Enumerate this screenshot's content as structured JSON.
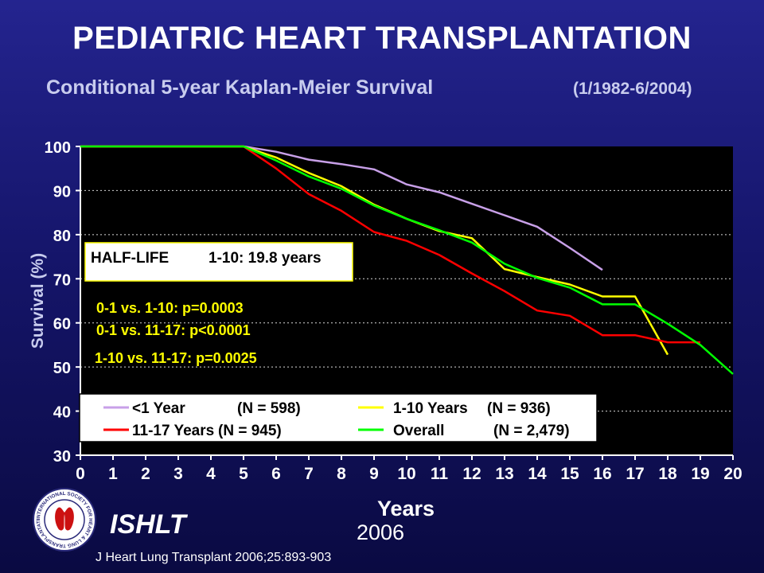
{
  "header": {
    "title": "PEDIATRIC HEART TRANSPLANTATION",
    "subtitle": "Conditional 5-year Kaplan-Meier Survival",
    "date_range": "(1/1982-6/2004)"
  },
  "chart_data": {
    "type": "line",
    "xlabel": "Years",
    "ylabel": "Survival (%)",
    "xlim": [
      0,
      20
    ],
    "ylim": [
      30,
      100
    ],
    "x_ticks": [
      "0",
      "1",
      "2",
      "3",
      "4",
      "5",
      "6",
      "7",
      "8",
      "9",
      "10",
      "11",
      "12",
      "13",
      "14",
      "15",
      "16",
      "17",
      "18",
      "19",
      "20"
    ],
    "y_ticks": [
      "30",
      "40",
      "50",
      "60",
      "70",
      "80",
      "90",
      "100"
    ],
    "grid": "horizontal dashed",
    "background": "#000000",
    "series": [
      {
        "name": "<1 Year",
        "n_label": "(N = 598)",
        "color": "#c8a0e8",
        "x": [
          0,
          5,
          6,
          7,
          8,
          9,
          10,
          11,
          12,
          13,
          14,
          15,
          16
        ],
        "y": [
          100,
          100,
          98.8,
          97,
          96,
          94.8,
          91.4,
          89.6,
          87,
          84.4,
          81.8,
          77,
          72
        ]
      },
      {
        "name": "1-10 Years",
        "n_label": "(N = 936)",
        "color": "#ffff00",
        "x": [
          0,
          5,
          6,
          7,
          8,
          9,
          10,
          11,
          12,
          13,
          14,
          15,
          16,
          17,
          18
        ],
        "y": [
          100,
          100,
          97.5,
          94,
          91,
          86.8,
          83.6,
          80.8,
          79.2,
          72.2,
          70.4,
          68.7,
          66,
          66,
          52.8
        ]
      },
      {
        "name": "11-17 Years",
        "n_label": "(N = 945)",
        "color": "#ff0000",
        "x": [
          0,
          5,
          6,
          7,
          8,
          9,
          10,
          11,
          12,
          13,
          14,
          15,
          16,
          17,
          18,
          19
        ],
        "y": [
          100,
          100,
          95,
          89.2,
          85.4,
          80.6,
          78.6,
          75.4,
          71.2,
          67.2,
          62.8,
          61.6,
          57.2,
          57.2,
          55.6,
          55.6
        ]
      },
      {
        "name": "Overall",
        "n_label": "(N = 2,479)",
        "color": "#00ff00",
        "x": [
          0,
          5,
          6,
          7,
          8,
          9,
          10,
          11,
          12,
          13,
          14,
          15,
          16,
          17,
          18,
          19,
          20
        ],
        "y": [
          100,
          100,
          96.8,
          93.2,
          90.4,
          86.6,
          83.6,
          81,
          78.2,
          73.4,
          70.2,
          68,
          64.2,
          64.2,
          59.8,
          55,
          48.4
        ]
      }
    ],
    "annotations": {
      "half_life": {
        "label": "HALF-LIFE",
        "value": "1-10: 19.8 years"
      },
      "pvalues": [
        "0-1 vs. 1-10: p=0.0003",
        "0-1 vs. 11-17: p<0.0001",
        "1-10 vs. 11-17: p=0.0025"
      ]
    },
    "legend_position": "bottom-left inside plot"
  },
  "footer": {
    "org": "ISHLT",
    "year": "2006",
    "citation": "J Heart Lung Transplant 2006;25:893-903"
  },
  "logo": {
    "icon": "ishlt-seal-icon",
    "ring_text": "INTERNATIONAL SOCIETY FOR HEART & LUNG TRANSPLANTATION"
  }
}
